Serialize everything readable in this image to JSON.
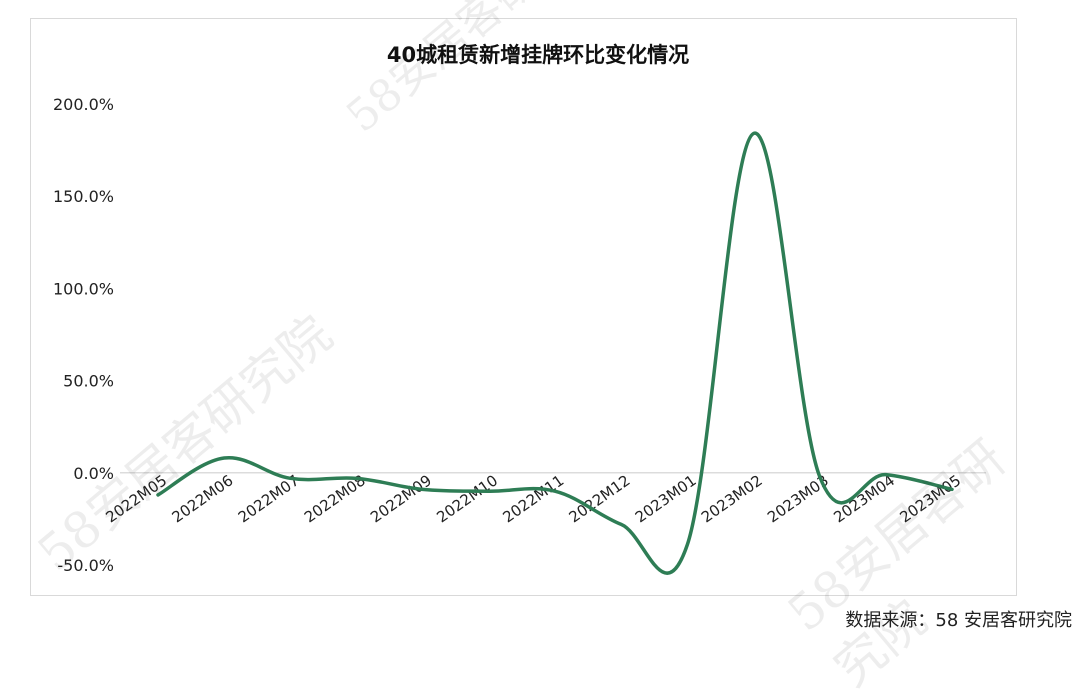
{
  "source_note": "数据来源：58 安居客研究院",
  "watermark_text": "58安居客研究院",
  "chart_data": {
    "type": "line",
    "title": "40城租赁新增挂牌环比变化情况",
    "xlabel": "",
    "ylabel": "",
    "categories": [
      "2022M05",
      "2022M06",
      "2022M07",
      "2022M08",
      "2022M09",
      "2022M10",
      "2022M11",
      "2022M12",
      "2023M01",
      "2023M02",
      "2023M03",
      "2023M04",
      "2023M05"
    ],
    "yticks": [
      "200.0%",
      "150.0%",
      "100.0%",
      "50.0%",
      "0.0%",
      "-50.0%"
    ],
    "ylim": [
      -50,
      200
    ],
    "series": [
      {
        "values": [
          -12,
          8,
          -3,
          -3,
          -9,
          -10,
          -10,
          -28,
          -39,
          184,
          -2,
          -1,
          -9
        ],
        "color": "#2e7d55"
      }
    ],
    "grid": false,
    "legend": "none"
  }
}
